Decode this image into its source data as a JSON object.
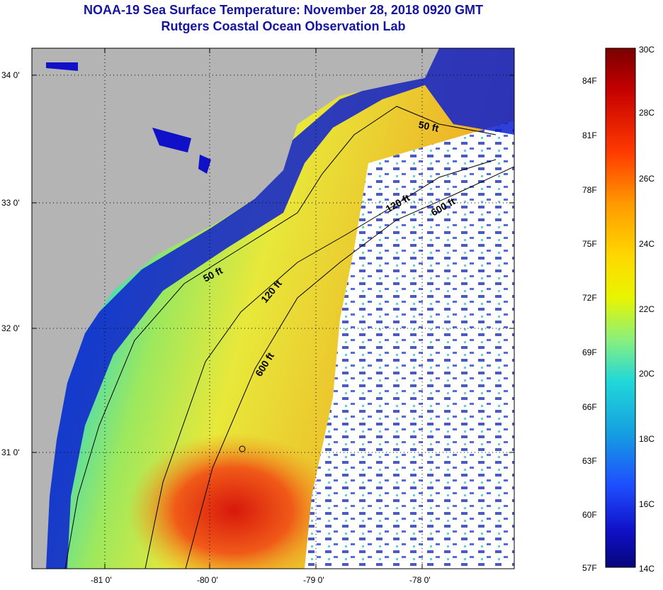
{
  "title": {
    "line1": "NOAA-19 Sea Surface Temperature:  November 28, 2018 0920 GMT",
    "line2": "Rutgers Coastal Ocean Observation Lab"
  },
  "map": {
    "lat_labels": [
      "34 0'",
      "33 0'",
      "32 0'",
      "31 0'"
    ],
    "lon_labels": [
      "-81 0'",
      "-80 0'",
      "-79 0'",
      "-78 0'"
    ],
    "contours": [
      {
        "name": "50 ft",
        "label": "50 ft"
      },
      {
        "name": "50 ft",
        "label": "50 ft"
      },
      {
        "name": "120 ft",
        "label": "120 ft"
      },
      {
        "name": "120 ft",
        "label": "120 ft"
      },
      {
        "name": "600 ft",
        "label": "600 ft"
      },
      {
        "name": "600 ft",
        "label": "600 ft"
      }
    ],
    "colors": {
      "land": "#b4b4b4",
      "cloud": "#ffffff",
      "shelf_cold": "#0c1fd0",
      "mid": "#2ad7d7",
      "warm": "#e8e83a",
      "hot": "#e2250e"
    }
  },
  "legend": {
    "fahrenheit": [
      "84F",
      "81F",
      "78F",
      "75F",
      "72F",
      "69F",
      "66F",
      "63F",
      "60F",
      "57F"
    ],
    "celsius": [
      "30C",
      "28C",
      "26C",
      "24C",
      "22C",
      "20C",
      "18C",
      "16C",
      "14C"
    ],
    "gradient": [
      "#7a0000",
      "#c40000",
      "#ff3a00",
      "#ff9a00",
      "#ffd800",
      "#e8f500",
      "#8cf07a",
      "#22d8d8",
      "#15a0e0",
      "#1e50ff",
      "#1010c8",
      "#06067a"
    ]
  }
}
